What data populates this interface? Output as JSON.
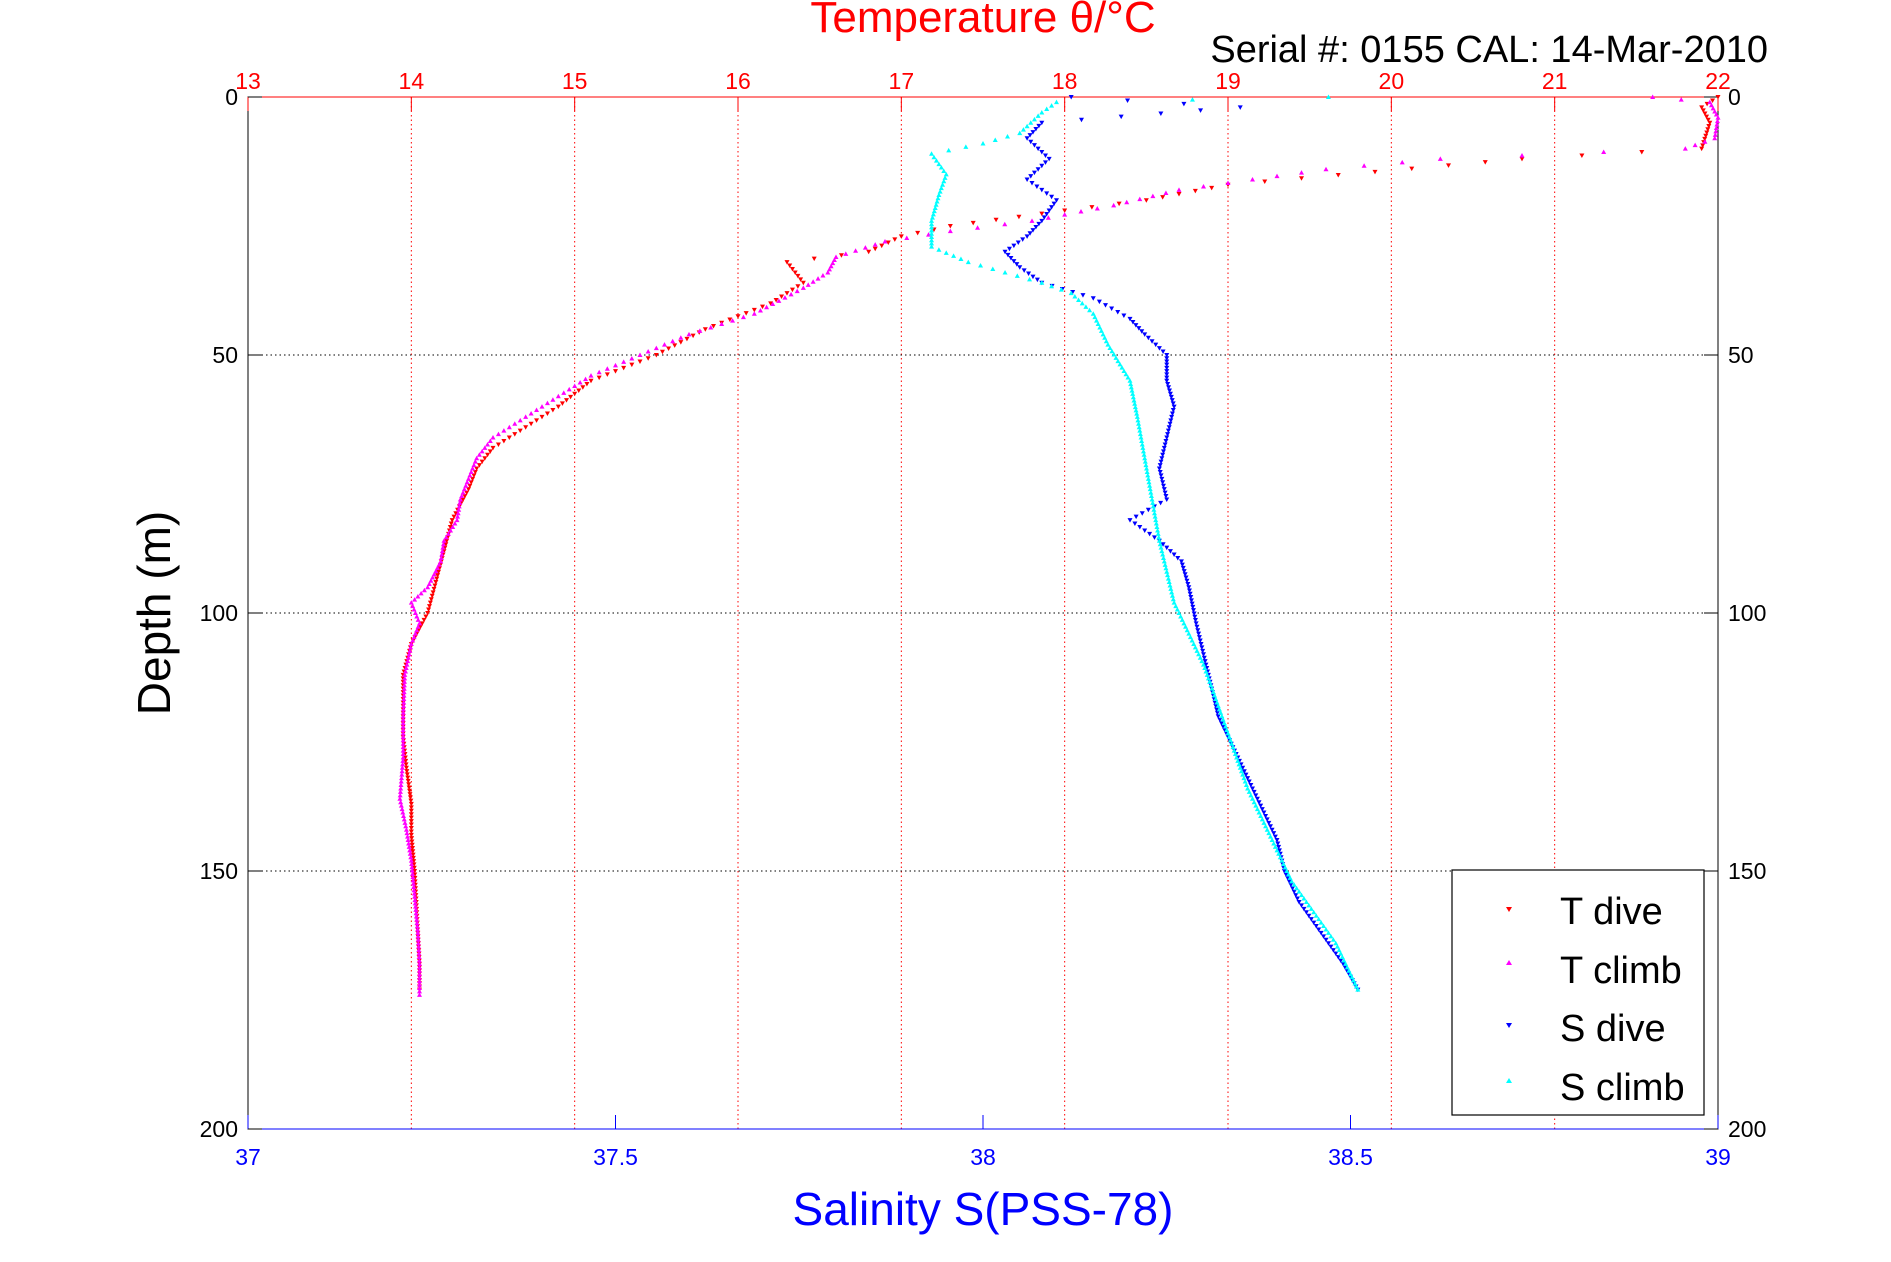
{
  "chart_data": {
    "type": "scatter",
    "title": "Temperature θ/°C",
    "serial_text": "Serial #: 0155  CAL: 14-Mar-2010",
    "xlabel_top": "Temperature θ/°C",
    "xlabel_bottom": "Salinity S(PSS-78)",
    "ylabel": "Depth (m)",
    "x_top_lim": [
      13,
      22
    ],
    "x_top_ticks": [
      "13",
      "14",
      "15",
      "16",
      "17",
      "18",
      "19",
      "20",
      "21",
      "22"
    ],
    "x_bottom_lim": [
      37,
      39
    ],
    "x_bottom_ticks": [
      "37",
      "37.5",
      "38",
      "38.5",
      "39"
    ],
    "ylim": [
      0,
      200
    ],
    "y_ticks": [
      "0",
      "50",
      "100",
      "150",
      "200"
    ],
    "y_reversed": true,
    "grid": true,
    "legend_position": "bottom-right",
    "colors": {
      "t_axis": "#ff0000",
      "s_axis": "#0000ff",
      "t_dive": "#ff0000",
      "t_climb": "#ff00ff",
      "s_dive": "#0000ff",
      "s_climb": "#00ffff"
    },
    "series": [
      {
        "name": "T dive",
        "axis": "temperature",
        "marker": "down-triangle",
        "points": [
          [
            22.0,
            0
          ],
          [
            21.9,
            2
          ],
          [
            21.95,
            5
          ],
          [
            21.9,
            10
          ],
          [
            20.8,
            12
          ],
          [
            19.0,
            17
          ],
          [
            18.5,
            20
          ],
          [
            18.0,
            22
          ],
          [
            17.3,
            25
          ],
          [
            17.0,
            27
          ],
          [
            16.8,
            30
          ],
          [
            16.3,
            32
          ],
          [
            16.4,
            36
          ],
          [
            16.2,
            40
          ],
          [
            15.8,
            45
          ],
          [
            15.5,
            50
          ],
          [
            15.1,
            55
          ],
          [
            14.9,
            60
          ],
          [
            14.7,
            64
          ],
          [
            14.5,
            68
          ],
          [
            14.4,
            72
          ],
          [
            14.35,
            76
          ],
          [
            14.25,
            82
          ],
          [
            14.2,
            88
          ],
          [
            14.15,
            94
          ],
          [
            14.1,
            100
          ],
          [
            14.0,
            106
          ],
          [
            13.95,
            112
          ],
          [
            13.95,
            118
          ],
          [
            13.95,
            124
          ],
          [
            13.97,
            130
          ],
          [
            14.0,
            137
          ],
          [
            14.0,
            143
          ],
          [
            14.02,
            150
          ],
          [
            14.03,
            156
          ],
          [
            14.04,
            162
          ],
          [
            14.05,
            168
          ],
          [
            14.05,
            173
          ]
        ]
      },
      {
        "name": "T climb",
        "axis": "temperature",
        "marker": "up-triangle",
        "points": [
          [
            21.6,
            0
          ],
          [
            21.95,
            1
          ],
          [
            22.0,
            4
          ],
          [
            21.98,
            8
          ],
          [
            21.8,
            10
          ],
          [
            20.3,
            12
          ],
          [
            19.6,
            14
          ],
          [
            18.7,
            18
          ],
          [
            18.3,
            21
          ],
          [
            17.8,
            24
          ],
          [
            17.3,
            26
          ],
          [
            16.9,
            28
          ],
          [
            16.6,
            31
          ],
          [
            16.55,
            34
          ],
          [
            16.4,
            37
          ],
          [
            16.1,
            42
          ],
          [
            15.7,
            46
          ],
          [
            15.4,
            50
          ],
          [
            15.1,
            54
          ],
          [
            14.9,
            58
          ],
          [
            14.7,
            62
          ],
          [
            14.5,
            66
          ],
          [
            14.4,
            70
          ],
          [
            14.35,
            74
          ],
          [
            14.3,
            78
          ],
          [
            14.28,
            82
          ],
          [
            14.2,
            86
          ],
          [
            14.18,
            90
          ],
          [
            14.1,
            95
          ],
          [
            14.0,
            98
          ],
          [
            14.05,
            102
          ],
          [
            14.0,
            106
          ],
          [
            13.96,
            112
          ],
          [
            13.95,
            120
          ],
          [
            13.95,
            128
          ],
          [
            13.93,
            136
          ],
          [
            13.97,
            142
          ],
          [
            14.0,
            148
          ],
          [
            14.02,
            155
          ],
          [
            14.04,
            162
          ],
          [
            14.05,
            168
          ],
          [
            14.05,
            174
          ]
        ]
      },
      {
        "name": "S dive",
        "axis": "salinity",
        "marker": "down-triangle",
        "points": [
          [
            38.12,
            0
          ],
          [
            38.35,
            2
          ],
          [
            38.08,
            5
          ],
          [
            38.06,
            8
          ],
          [
            38.09,
            12
          ],
          [
            38.06,
            16
          ],
          [
            38.1,
            20
          ],
          [
            38.08,
            24
          ],
          [
            38.06,
            27
          ],
          [
            38.03,
            30
          ],
          [
            38.05,
            33
          ],
          [
            38.08,
            36
          ],
          [
            38.15,
            39
          ],
          [
            38.2,
            43
          ],
          [
            38.22,
            46
          ],
          [
            38.25,
            50
          ],
          [
            38.25,
            55
          ],
          [
            38.26,
            60
          ],
          [
            38.25,
            66
          ],
          [
            38.24,
            72
          ],
          [
            38.25,
            78
          ],
          [
            38.2,
            82
          ],
          [
            38.24,
            86
          ],
          [
            38.27,
            90
          ],
          [
            38.28,
            95
          ],
          [
            38.29,
            102
          ],
          [
            38.3,
            108
          ],
          [
            38.31,
            114
          ],
          [
            38.32,
            120
          ],
          [
            38.34,
            126
          ],
          [
            38.36,
            132
          ],
          [
            38.38,
            138
          ],
          [
            38.4,
            144
          ],
          [
            38.41,
            150
          ],
          [
            38.43,
            156
          ],
          [
            38.46,
            162
          ],
          [
            38.49,
            168
          ],
          [
            38.51,
            173
          ]
        ]
      },
      {
        "name": "S climb",
        "axis": "salinity",
        "marker": "up-triangle",
        "points": [
          [
            38.47,
            0
          ],
          [
            38.1,
            1
          ],
          [
            38.08,
            3
          ],
          [
            38.05,
            7
          ],
          [
            38.0,
            9
          ],
          [
            37.93,
            11
          ],
          [
            37.95,
            15
          ],
          [
            37.94,
            19
          ],
          [
            37.93,
            24
          ],
          [
            37.93,
            29
          ],
          [
            37.98,
            32
          ],
          [
            38.03,
            34
          ],
          [
            38.08,
            36
          ],
          [
            38.12,
            38
          ],
          [
            38.15,
            42
          ],
          [
            38.17,
            48
          ],
          [
            38.2,
            55
          ],
          [
            38.21,
            62
          ],
          [
            38.22,
            70
          ],
          [
            38.23,
            78
          ],
          [
            38.24,
            86
          ],
          [
            38.25,
            92
          ],
          [
            38.26,
            98
          ],
          [
            38.28,
            104
          ],
          [
            38.3,
            110
          ],
          [
            38.32,
            118
          ],
          [
            38.34,
            126
          ],
          [
            38.36,
            134
          ],
          [
            38.38,
            140
          ],
          [
            38.4,
            146
          ],
          [
            38.42,
            152
          ],
          [
            38.45,
            158
          ],
          [
            38.48,
            164
          ],
          [
            38.5,
            170
          ],
          [
            38.51,
            173
          ]
        ]
      }
    ]
  }
}
